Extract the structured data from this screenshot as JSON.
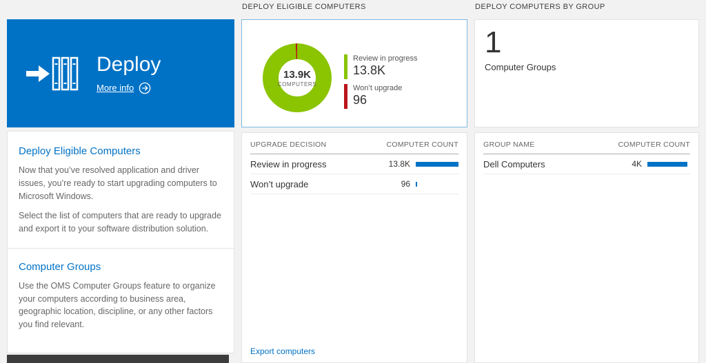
{
  "colors": {
    "tile_blue": "#0072c6",
    "accent_blue": "#0072c6",
    "bar_blue": "#0072c6",
    "green": "#8bc400",
    "red": "#ba141a",
    "selected_border": "#7db9e0",
    "footer_dark": "#3d3d3d"
  },
  "left": {
    "tile": {
      "title": "Deploy",
      "more_info_label": "More info"
    },
    "sections": [
      {
        "heading": "Deploy Eligible Computers",
        "paragraphs": [
          "Now that you’ve resolved application and driver issues, you’re ready to start upgrading computers to Microsoft Windows.",
          "Select the list of computers that are ready to upgrade and export it to your software distribution solution."
        ]
      },
      {
        "heading": "Computer Groups",
        "paragraphs": [
          "Use the OMS Computer Groups feature to organize your computers according to business area, geographic location, discipline, or any other factors you find relevant."
        ]
      }
    ]
  },
  "middle": {
    "header": "DEPLOY ELIGIBLE COMPUTERS",
    "donut": {
      "center_value": "13.9K",
      "center_label": "COMPUTERS",
      "series": [
        {
          "name": "Review in progress",
          "count": 13800,
          "display": "13.8K",
          "color": "#8bc400"
        },
        {
          "name": "Won’t upgrade",
          "count": 96,
          "display": "96",
          "color": "#ba141a"
        }
      ]
    },
    "table": {
      "columns": [
        "UPGRADE DECISION",
        "COMPUTER COUNT"
      ],
      "rows": [
        {
          "label": "Review in progress",
          "count_display": "13.8K",
          "bar_pct": 100
        },
        {
          "label": "Won’t upgrade",
          "count_display": "96",
          "bar_pct": 3
        }
      ]
    },
    "export_link": "Export computers"
  },
  "right": {
    "header": "DEPLOY COMPUTERS BY GROUP",
    "summary": {
      "value": "1",
      "label": "Computer Groups"
    },
    "table": {
      "columns": [
        "GROUP NAME",
        "COMPUTER COUNT"
      ],
      "rows": [
        {
          "label": "Dell Computers",
          "count_display": "4K",
          "bar_pct": 93
        }
      ]
    }
  }
}
